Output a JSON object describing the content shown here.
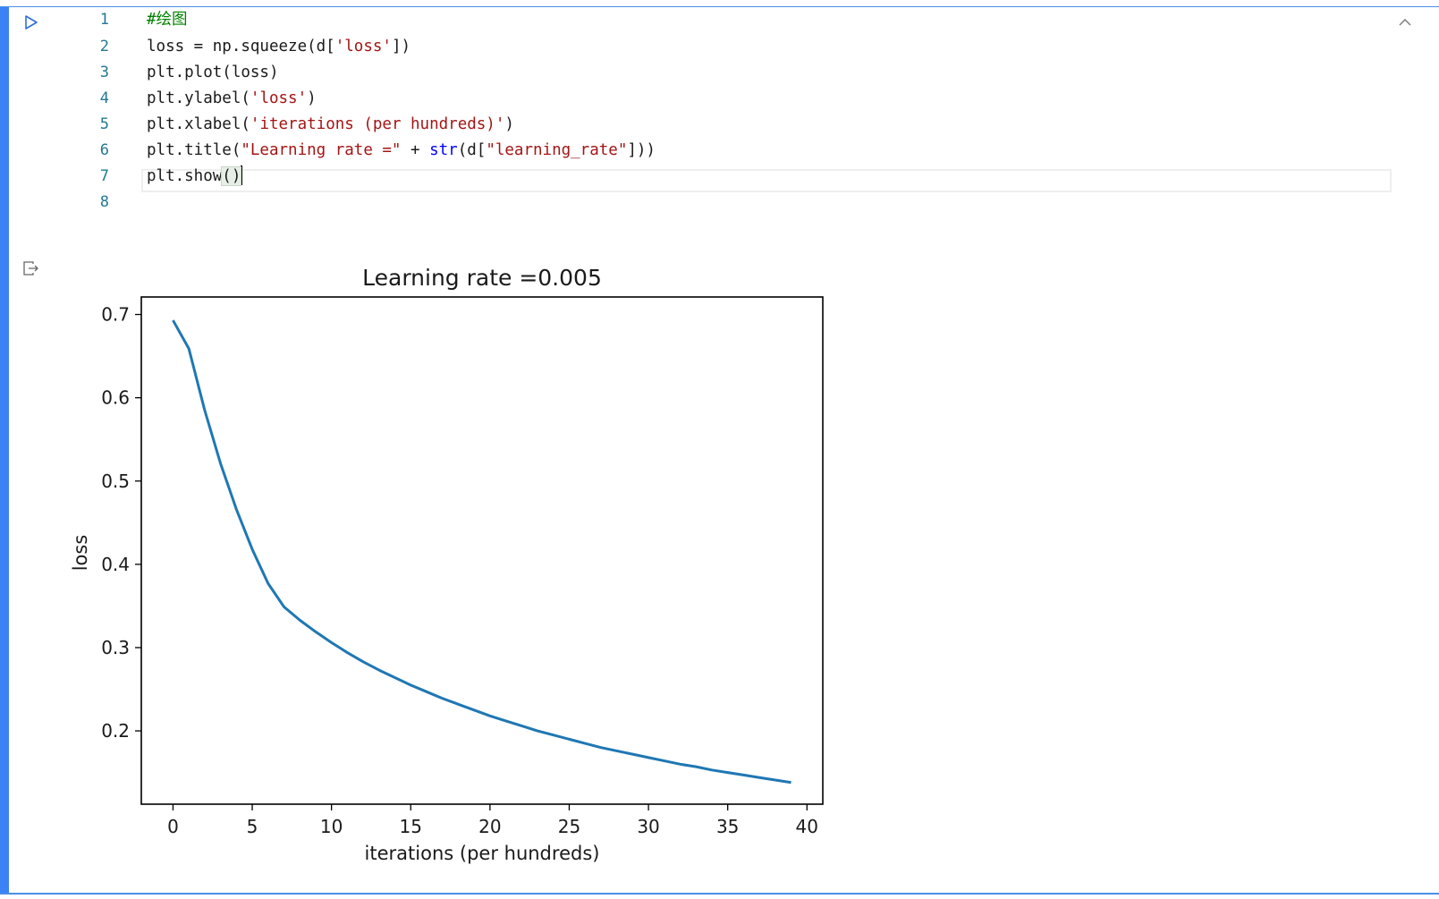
{
  "cell": {
    "line_numbers": [
      "1",
      "2",
      "3",
      "4",
      "5",
      "6",
      "7",
      "8"
    ],
    "code": {
      "l1": "#绘图",
      "l2_a": "loss = np.squeeze(d[",
      "l2_s": "'loss'",
      "l2_b": "])",
      "l3": "plt.plot(loss)",
      "l4_a": "plt.ylabel(",
      "l4_s": "'loss'",
      "l4_b": ")",
      "l5_a": "plt.xlabel(",
      "l5_s": "'iterations (per hundreds)'",
      "l5_b": ")",
      "l6_a": "plt.title(",
      "l6_s1": "\"Learning rate =\"",
      "l6_b": " + ",
      "l6_fn": "str",
      "l6_c": "(d[",
      "l6_s2": "\"learning_rate\"",
      "l6_d": "]))",
      "l7_a": "plt.show",
      "l7_p": "()"
    },
    "icons": {
      "run": "run-icon",
      "collapse": "chevron-up-icon",
      "output": "output-icon"
    },
    "colors": {
      "accent": "#3b82f6",
      "line_color": "#1f77b4"
    }
  },
  "chart_data": {
    "type": "line",
    "title": "Learning rate =0.005",
    "xlabel": "iterations (per hundreds)",
    "ylabel": "loss",
    "xlim": [
      -2,
      41
    ],
    "ylim": [
      0.112,
      0.721
    ],
    "xticks": [
      "0",
      "5",
      "10",
      "15",
      "20",
      "25",
      "30",
      "35",
      "40"
    ],
    "yticks": [
      "0.2",
      "0.3",
      "0.4",
      "0.5",
      "0.6",
      "0.7"
    ],
    "grid": false,
    "series": [
      {
        "color": "#1f77b4",
        "x": [
          0,
          1,
          2,
          3,
          4,
          5,
          6,
          7,
          8,
          9,
          10,
          11,
          12,
          13,
          14,
          15,
          16,
          17,
          18,
          19,
          20,
          21,
          22,
          23,
          24,
          25,
          26,
          27,
          28,
          29,
          30,
          31,
          32,
          33,
          34,
          35,
          36,
          37,
          38,
          39
        ],
        "y": [
          0.693,
          0.659,
          0.585,
          0.521,
          0.466,
          0.418,
          0.377,
          0.349,
          0.333,
          0.319,
          0.306,
          0.294,
          0.283,
          0.273,
          0.264,
          0.255,
          0.247,
          0.239,
          0.232,
          0.225,
          0.218,
          0.212,
          0.206,
          0.2,
          0.195,
          0.19,
          0.185,
          0.18,
          0.176,
          0.172,
          0.168,
          0.164,
          0.16,
          0.157,
          0.153,
          0.15,
          0.147,
          0.144,
          0.141,
          0.138
        ]
      }
    ]
  }
}
